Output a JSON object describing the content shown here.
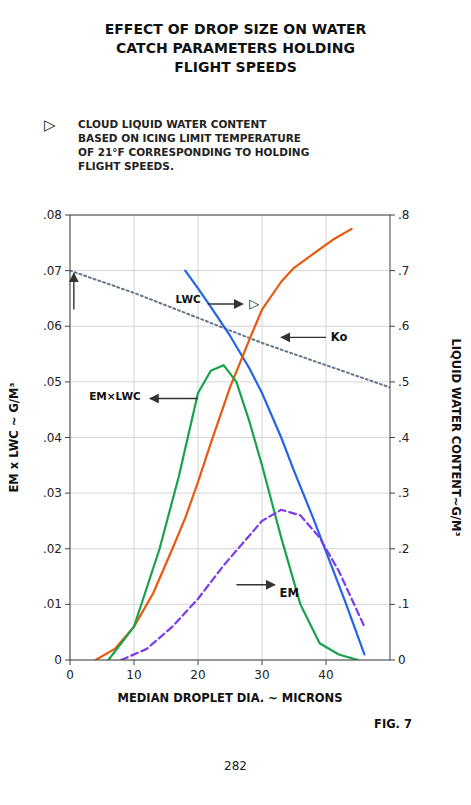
{
  "chart_data": {
    "type": "line",
    "title": [
      "EFFECT OF DROP SIZE ON WATER",
      "CATCH PARAMETERS HOLDING",
      "FLIGHT SPEEDS"
    ],
    "subtitle": [
      "CLOUD LIQUID WATER CONTENT",
      "BASED ON ICING LIMIT TEMPERATURE",
      "OF 21°F CORRESPONDING TO HOLDING",
      "FLIGHT SPEEDS."
    ],
    "xlabel": "MEDIAN DROPLET DIA. ~ MICRONS",
    "ylabel": "EM x LWC ~ G/M³",
    "y2label": "LIQUID WATER CONTENT~G/M³",
    "xlim": [
      0,
      50
    ],
    "ylim": [
      0,
      0.08
    ],
    "y2lim": [
      0,
      0.8
    ],
    "xticks": [
      0,
      10,
      20,
      30,
      40
    ],
    "yticks": [
      0,
      {
        "value": 0.01,
        "label": ".01"
      },
      {
        "value": 0.02,
        "label": ".02"
      },
      {
        "value": 0.03,
        "label": ".03"
      },
      {
        "value": 0.04,
        "label": ".04"
      },
      {
        "value": 0.05,
        "label": ".05"
      },
      {
        "value": 0.06,
        "label": ".06"
      },
      {
        "value": 0.07,
        "label": ".07"
      },
      {
        "value": 0.08,
        "label": ".08"
      }
    ],
    "y2ticks": [
      0,
      {
        "value": 0.1,
        "label": ".1"
      },
      {
        "value": 0.2,
        "label": ".2"
      },
      {
        "value": 0.3,
        "label": ".3"
      },
      {
        "value": 0.4,
        "label": ".4"
      },
      {
        "value": 0.5,
        "label": ".5"
      },
      {
        "value": 0.6,
        "label": ".6"
      },
      {
        "value": 0.7,
        "label": ".7"
      },
      {
        "value": 0.8,
        "label": ".8"
      }
    ],
    "grid": true,
    "series": [
      {
        "line_style": "dotted",
        "x": [
          0,
          10,
          20,
          30,
          40,
          50
        ],
        "values": [
          0.07,
          0.066,
          0.0615,
          0.057,
          0.053,
          0.049
        ]
      },
      {
        "line_style": "solid",
        "x": [
          18,
          20,
          22,
          25,
          28,
          30,
          33,
          35,
          38,
          40,
          43,
          46
        ],
        "values": [
          0.07,
          0.0668,
          0.0635,
          0.0583,
          0.0525,
          0.048,
          0.04,
          0.034,
          0.0255,
          0.0195,
          0.0105,
          0.001
        ]
      },
      {
        "line_style": "solid",
        "x": [
          4,
          7,
          10,
          13,
          16,
          18,
          20,
          22,
          25,
          28,
          30,
          33,
          35,
          38,
          41,
          44
        ],
        "values": [
          0.0,
          0.002,
          0.006,
          0.012,
          0.02,
          0.0255,
          0.032,
          0.039,
          0.049,
          0.0575,
          0.063,
          0.068,
          0.0705,
          0.073,
          0.0755,
          0.0775
        ]
      },
      {
        "line_style": "solid",
        "x": [
          6,
          10,
          14,
          17,
          20,
          22,
          24,
          26,
          28,
          30,
          33,
          36,
          39,
          42,
          45
        ],
        "values": [
          0.0,
          0.006,
          0.02,
          0.033,
          0.048,
          0.052,
          0.053,
          0.05,
          0.043,
          0.035,
          0.022,
          0.01,
          0.003,
          0.001,
          0.0
        ]
      },
      {
        "line_style": "dashed",
        "x": [
          8,
          12,
          16,
          20,
          24,
          27,
          30,
          33,
          36,
          39,
          42,
          46
        ],
        "values": [
          0.0,
          0.002,
          0.006,
          0.011,
          0.017,
          0.021,
          0.025,
          0.027,
          0.026,
          0.022,
          0.016,
          0.006
        ]
      }
    ],
    "annotations": [
      "▷",
      "LWC",
      "▷",
      "Ko",
      "EM×LWC",
      "EM",
      "282",
      "FIG. 7"
    ]
  }
}
